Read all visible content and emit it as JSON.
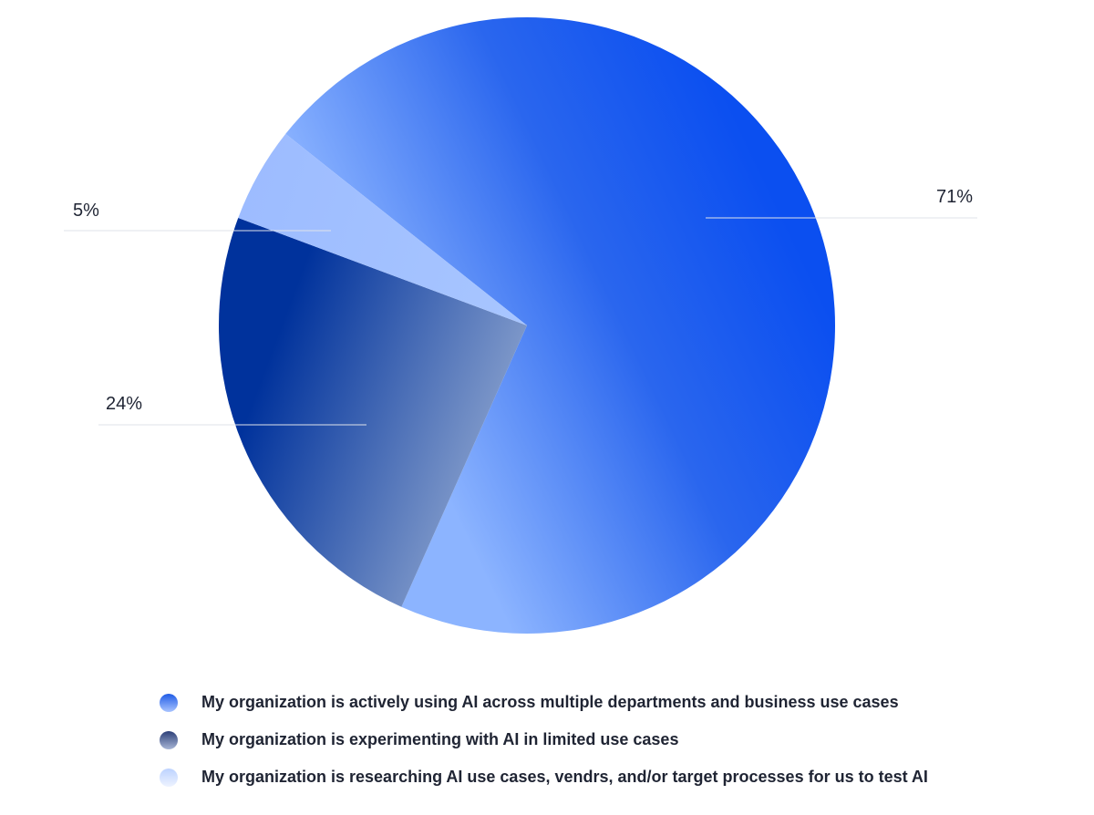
{
  "chart_data": {
    "type": "pie",
    "title": "",
    "legend_position": "bottom",
    "slices": [
      {
        "label": "My organization is actively using AI across multiple departments and business use cases",
        "value": 71,
        "value_label": "71%",
        "color": "#1257ea"
      },
      {
        "label": "My organization is experimenting with AI in limited use cases",
        "value": 24,
        "value_label": "24%",
        "color": "#1f45a8"
      },
      {
        "label": "My organization is researching AI use cases, vendrs, and/or target processes for us to test AI",
        "value": 5,
        "value_label": "5%",
        "color": "#9fbfff"
      }
    ]
  },
  "colors": {
    "series_1_gradient": [
      "#0b4ff0",
      "#7faeff"
    ],
    "series_2_gradient": [
      "#00329c",
      "#7e98c9"
    ],
    "series_3": "#9fbfff",
    "swatch_1": [
      "#1f5be6",
      "#a9c4ff"
    ],
    "swatch_2": [
      "#2c3f78",
      "#a8b6d6"
    ],
    "swatch_3": [
      "#bcd2ff",
      "#eef3ff"
    ]
  }
}
